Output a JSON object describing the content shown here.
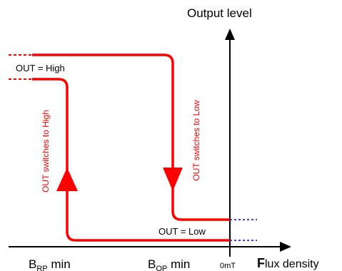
{
  "colors": {
    "curve": "#ff0000",
    "axes": "#000000",
    "dashed_low": "#0000cc",
    "annotation": "#ff0000"
  },
  "y_axis_label": "Output level",
  "x_axis_label_lead": "F",
  "x_axis_label_rest": "lux density",
  "zero_label": "0mT",
  "brp_label": {
    "base": "B",
    "sub": "RP",
    "tail": " min"
  },
  "bop_label": {
    "base": "B",
    "sub": "OP",
    "tail": " min"
  },
  "out_high": "OUT = High",
  "out_low": "OUT = Low",
  "switch_high": "OUT switches to High",
  "switch_low": "OUT switches to Low"
}
